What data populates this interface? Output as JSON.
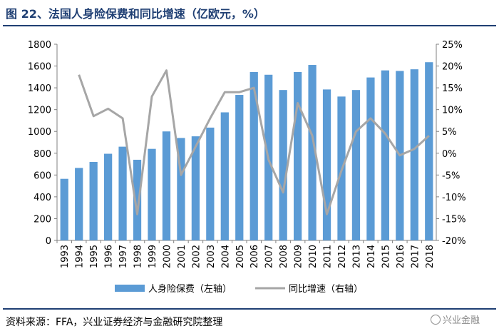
{
  "header": {
    "title": "图 22、法国人身险保费和同比增速（亿欧元，%）"
  },
  "footer": {
    "source": "资料来源：FFA，兴业证券经济与金融研究院整理",
    "watermark": "兴业金融"
  },
  "chart_data": {
    "type": "bar",
    "title": "图 22、法国人身险保费和同比增速（亿欧元，%）",
    "categories": [
      "1993",
      "1994",
      "1995",
      "1996",
      "1997",
      "1998",
      "1999",
      "2000",
      "2001",
      "2002",
      "2003",
      "2004",
      "2005",
      "2006",
      "2007",
      "2008",
      "2009",
      "2010",
      "2011",
      "2012",
      "2013",
      "2014",
      "2015",
      "2016",
      "2017",
      "2018"
    ],
    "series": [
      {
        "name": "人身险保费（左轴）",
        "type": "bar",
        "axis": "left",
        "color": "#5b9bd5",
        "values": [
          565,
          665,
          720,
          795,
          860,
          740,
          840,
          1000,
          940,
          955,
          1035,
          1175,
          1335,
          1545,
          1520,
          1380,
          1545,
          1610,
          1385,
          1320,
          1380,
          1495,
          1560,
          1555,
          1570,
          1635
        ]
      },
      {
        "name": "同比增速（右轴）",
        "type": "line",
        "axis": "right",
        "color": "#a6a6a6",
        "values": [
          null,
          18.0,
          8.5,
          10.2,
          8.0,
          -14.0,
          13.0,
          19.0,
          -5.0,
          1.5,
          8.0,
          14.0,
          14.0,
          15.0,
          -1.5,
          -9.0,
          11.5,
          4.0,
          -14.0,
          -4.0,
          5.0,
          8.0,
          4.5,
          -0.5,
          1.0,
          4.0
        ]
      }
    ],
    "y_left": {
      "min": 0,
      "max": 1800,
      "step": 200,
      "ticks": [
        "0",
        "200",
        "400",
        "600",
        "800",
        "1000",
        "1200",
        "1400",
        "1600",
        "1800"
      ]
    },
    "y_right": {
      "min": -20,
      "max": 25,
      "step": 5,
      "ticks": [
        "-20%",
        "-15%",
        "-10%",
        "-5%",
        "0%",
        "5%",
        "10%",
        "15%",
        "20%",
        "25%"
      ]
    },
    "legend": [
      "人身险保费（左轴）",
      "同比增速（右轴）"
    ],
    "legend_position": "bottom",
    "grid": false
  }
}
